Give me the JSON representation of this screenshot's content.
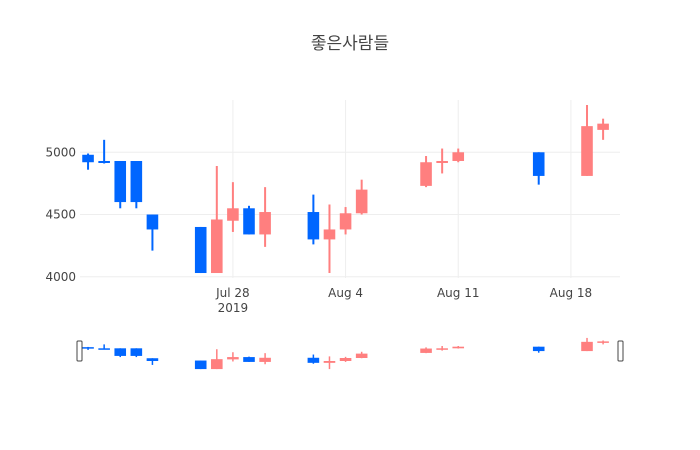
{
  "chart_data": {
    "type": "candlestick",
    "title": "좋은사람들",
    "xlabel": "",
    "ylabel": "",
    "x_range": [
      "2019-07-19",
      "2019-08-21"
    ],
    "ylim": [
      4000,
      5400
    ],
    "y_ticks": [
      {
        "value": 4000,
        "label": "4000"
      },
      {
        "value": 4500,
        "label": "4500"
      },
      {
        "value": 5000,
        "label": "5000"
      }
    ],
    "x_ticks": [
      {
        "date": "2019-07-28",
        "label": "Jul 28",
        "sublabel": "2019"
      },
      {
        "date": "2019-08-04",
        "label": "Aug 4",
        "sublabel": ""
      },
      {
        "date": "2019-08-11",
        "label": "Aug 11",
        "sublabel": ""
      },
      {
        "date": "2019-08-18",
        "label": "Aug 18",
        "sublabel": ""
      }
    ],
    "grid": true,
    "legend": "none",
    "rangeslider": true,
    "colors": {
      "increasing": "#ff7f7f",
      "decreasing": "#0066ff"
    },
    "candles": [
      {
        "date": "2019-07-19",
        "open": 4980,
        "high": 4990,
        "low": 4860,
        "close": 4920
      },
      {
        "date": "2019-07-20",
        "open": 4930,
        "high": 5100,
        "low": 4910,
        "close": 4920
      },
      {
        "date": "2019-07-21",
        "open": 4930,
        "high": 4930,
        "low": 4550,
        "close": 4600
      },
      {
        "date": "2019-07-22",
        "open": 4930,
        "high": 4930,
        "low": 4550,
        "close": 4600
      },
      {
        "date": "2019-07-23",
        "open": 4500,
        "high": 4500,
        "low": 4210,
        "close": 4380
      },
      {
        "date": "2019-07-26",
        "open": 4400,
        "high": 4400,
        "low": 4030,
        "close": 4030
      },
      {
        "date": "2019-07-27",
        "open": 4030,
        "high": 4890,
        "low": 4030,
        "close": 4460
      },
      {
        "date": "2019-07-28",
        "open": 4450,
        "high": 4760,
        "low": 4360,
        "close": 4550
      },
      {
        "date": "2019-07-29",
        "open": 4550,
        "high": 4570,
        "low": 4340,
        "close": 4340
      },
      {
        "date": "2019-07-30",
        "open": 4340,
        "high": 4720,
        "low": 4240,
        "close": 4520
      },
      {
        "date": "2019-08-02",
        "open": 4520,
        "high": 4660,
        "low": 4260,
        "close": 4300
      },
      {
        "date": "2019-08-03",
        "open": 4300,
        "high": 4580,
        "low": 4030,
        "close": 4380
      },
      {
        "date": "2019-08-04",
        "open": 4380,
        "high": 4560,
        "low": 4340,
        "close": 4510
      },
      {
        "date": "2019-08-05",
        "open": 4510,
        "high": 4780,
        "low": 4500,
        "close": 4700
      },
      {
        "date": "2019-08-09",
        "open": 4730,
        "high": 4970,
        "low": 4720,
        "close": 4920
      },
      {
        "date": "2019-08-10",
        "open": 4920,
        "high": 5030,
        "low": 4830,
        "close": 4930
      },
      {
        "date": "2019-08-11",
        "open": 4930,
        "high": 5030,
        "low": 4920,
        "close": 5000
      },
      {
        "date": "2019-08-16",
        "open": 5000,
        "high": 5000,
        "low": 4740,
        "close": 4810
      },
      {
        "date": "2019-08-19",
        "open": 4810,
        "high": 5380,
        "low": 4810,
        "close": 5210
      },
      {
        "date": "2019-08-20",
        "open": 5180,
        "high": 5270,
        "low": 5100,
        "close": 5230
      }
    ]
  }
}
